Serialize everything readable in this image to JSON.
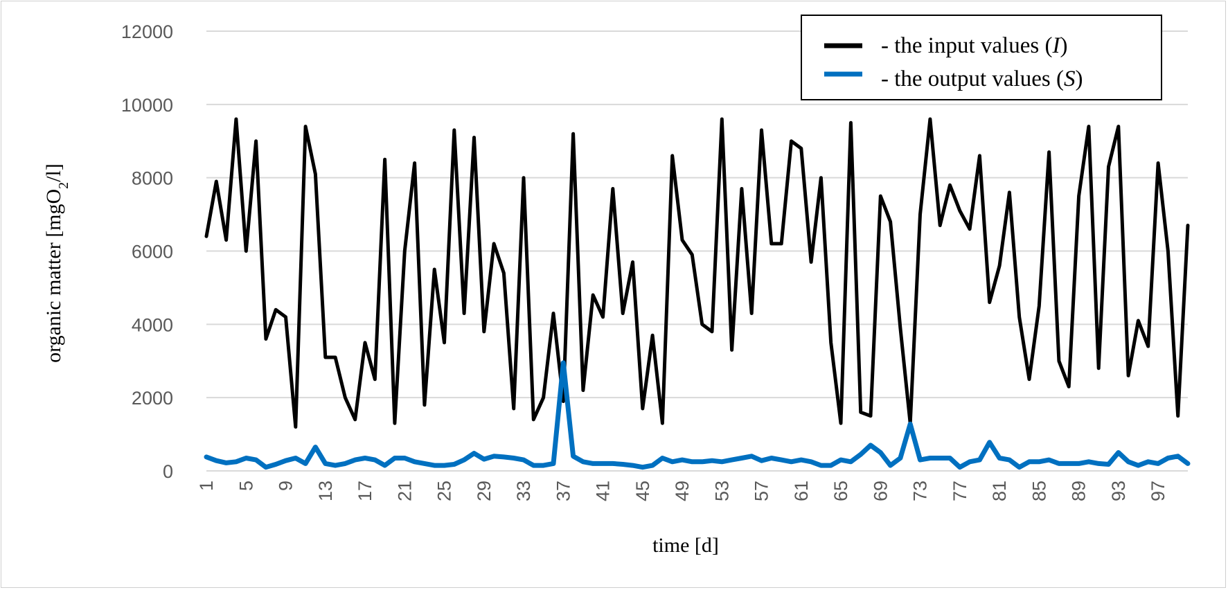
{
  "chart_data": {
    "type": "line",
    "xlabel": "time [d]",
    "ylabel_parts": [
      "organic matter [mgO",
      "2",
      "/l]"
    ],
    "ylim": [
      0,
      12000
    ],
    "yticks": [
      0,
      2000,
      4000,
      6000,
      8000,
      10000,
      12000
    ],
    "x": [
      1,
      2,
      3,
      4,
      5,
      6,
      7,
      8,
      9,
      10,
      11,
      12,
      13,
      14,
      15,
      16,
      17,
      18,
      19,
      20,
      21,
      22,
      23,
      24,
      25,
      26,
      27,
      28,
      29,
      30,
      31,
      32,
      33,
      34,
      35,
      36,
      37,
      38,
      39,
      40,
      41,
      42,
      43,
      44,
      45,
      46,
      47,
      48,
      49,
      50,
      51,
      52,
      53,
      54,
      55,
      56,
      57,
      58,
      59,
      60,
      61,
      62,
      63,
      64,
      65,
      66,
      67,
      68,
      69,
      70,
      71,
      72,
      73,
      74,
      75,
      76,
      77,
      78,
      79,
      80,
      81,
      82,
      83,
      84,
      85,
      86,
      87,
      88,
      89,
      90,
      91,
      92,
      93,
      94,
      95,
      96,
      97,
      98,
      99,
      100
    ],
    "xtick_labels": [
      "1",
      "5",
      "9",
      "13",
      "17",
      "21",
      "25",
      "29",
      "33",
      "37",
      "41",
      "45",
      "49",
      "53",
      "57",
      "61",
      "65",
      "69",
      "73",
      "77",
      "81",
      "85",
      "89",
      "93",
      "97"
    ],
    "grid": "horizontal",
    "legend_position": "top-right",
    "series": [
      {
        "name_parts": [
          "- the input values (",
          "I",
          ")"
        ],
        "color": "#000000",
        "values": [
          6400,
          7900,
          6300,
          9600,
          6000,
          9000,
          3600,
          4400,
          4200,
          1200,
          9400,
          8100,
          3100,
          3100,
          2000,
          1400,
          3500,
          2500,
          8500,
          1300,
          6000,
          8400,
          1800,
          5500,
          3500,
          9300,
          4300,
          9100,
          3800,
          6200,
          5400,
          1700,
          8000,
          1400,
          2000,
          4300,
          1900,
          9200,
          2200,
          4800,
          4200,
          7700,
          4300,
          5700,
          1700,
          3700,
          1300,
          8600,
          6300,
          5900,
          4000,
          3800,
          9600,
          3300,
          7700,
          4300,
          9300,
          6200,
          6200,
          9000,
          8800,
          5700,
          8000,
          3500,
          1300,
          9500,
          1600,
          1500,
          7500,
          6800,
          3900,
          1300,
          7000,
          9600,
          6700,
          7800,
          7100,
          6600,
          8600,
          4600,
          5600,
          7600,
          4200,
          2500,
          4500,
          8700,
          3000,
          2300,
          7500,
          9400,
          2800,
          8300,
          9400,
          2600,
          4100,
          3400,
          8400,
          6000,
          1500,
          6700
        ]
      },
      {
        "name_parts": [
          "- the output values (",
          "S",
          ")"
        ],
        "color": "#0070c0",
        "values": [
          380,
          280,
          220,
          250,
          350,
          300,
          100,
          180,
          280,
          350,
          200,
          650,
          200,
          150,
          200,
          300,
          350,
          300,
          150,
          350,
          350,
          250,
          200,
          150,
          150,
          180,
          300,
          480,
          320,
          400,
          380,
          350,
          300,
          150,
          150,
          200,
          2950,
          400,
          250,
          200,
          200,
          200,
          180,
          150,
          100,
          150,
          350,
          250,
          300,
          250,
          250,
          280,
          250,
          300,
          350,
          400,
          280,
          350,
          300,
          250,
          300,
          250,
          150,
          150,
          300,
          250,
          450,
          700,
          500,
          150,
          350,
          1280,
          300,
          350,
          350,
          350,
          100,
          250,
          300,
          780,
          350,
          300,
          100,
          250,
          250,
          300,
          200,
          200,
          200,
          250,
          200,
          180,
          500,
          250,
          150,
          250,
          200,
          350,
          400,
          200
        ]
      }
    ]
  }
}
